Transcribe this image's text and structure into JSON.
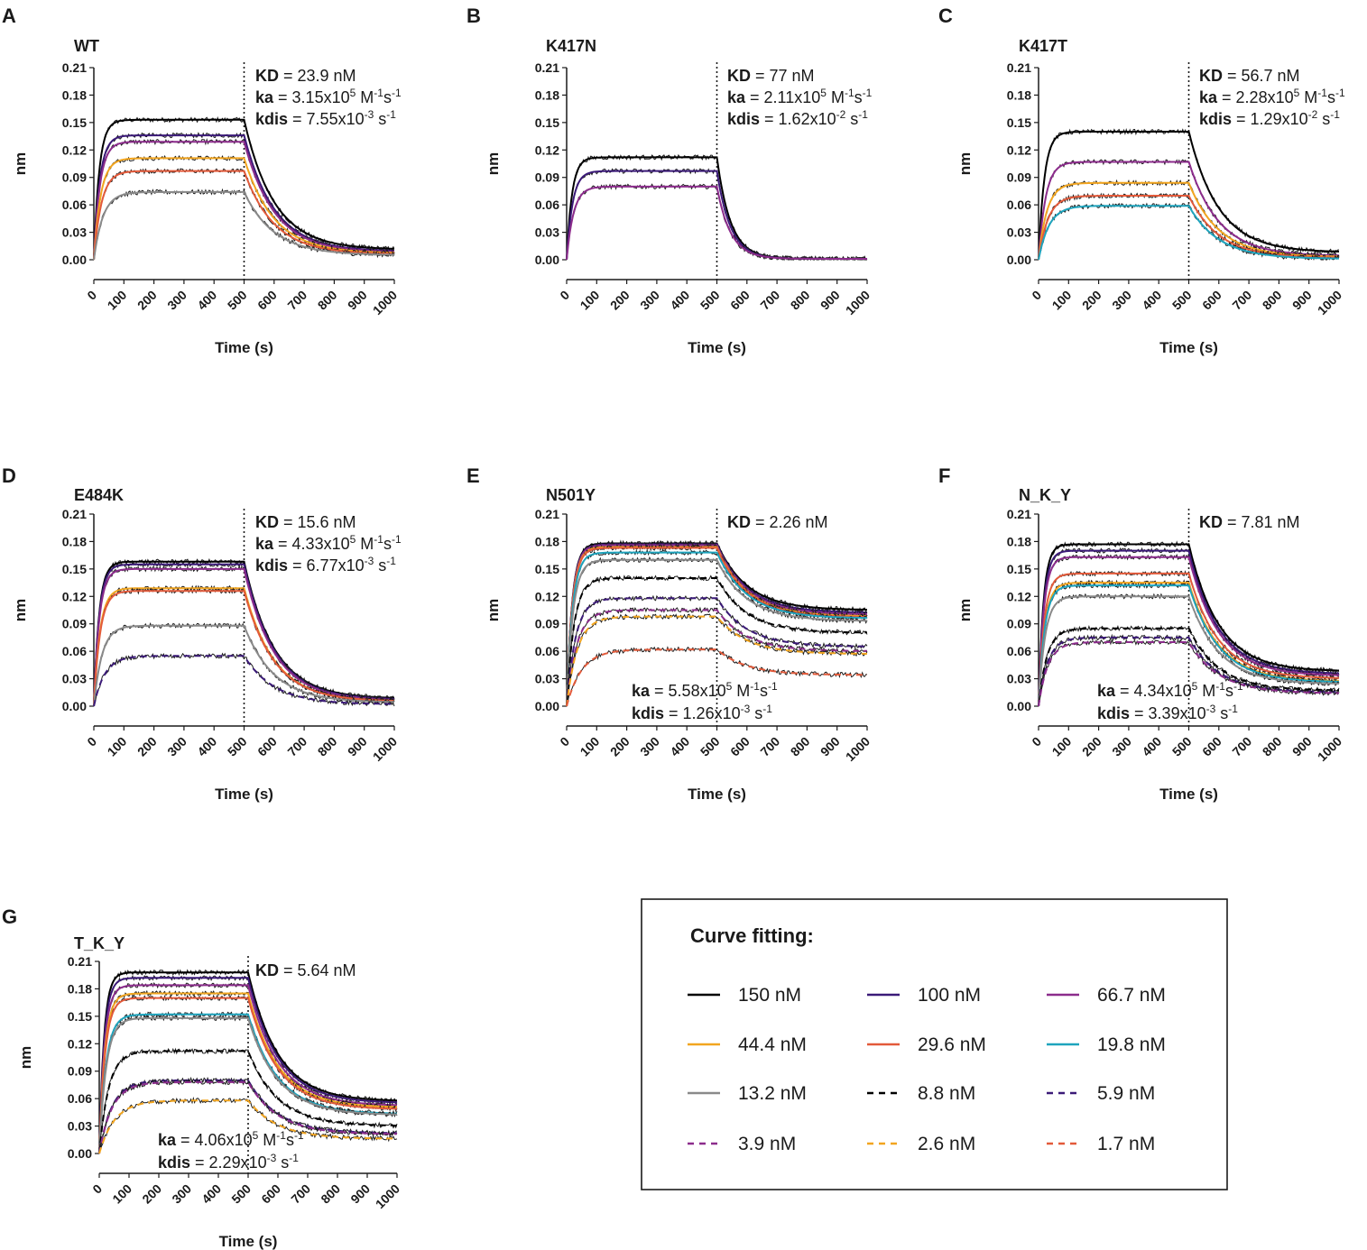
{
  "chart_data": {
    "type": "line",
    "x_axis": {
      "label": "Time (s)",
      "range": [
        0,
        1000
      ],
      "ticks": [
        "0",
        "100",
        "200",
        "300",
        "400",
        "500",
        "600",
        "700",
        "800",
        "900",
        "1000"
      ],
      "dissociation_start": 500
    },
    "y_axis": {
      "label": "nm",
      "range": [
        0,
        0.21
      ],
      "ticks": [
        "0.00",
        "0.03",
        "0.06",
        "0.09",
        "0.12",
        "0.15",
        "0.18",
        "0.21"
      ]
    },
    "legend": {
      "title": "Curve fitting:",
      "entries": [
        {
          "label": "150 nM",
          "color": "#000000",
          "dash": false
        },
        {
          "label": "100 nM",
          "color": "#3b1a78",
          "dash": false
        },
        {
          "label": "66.7 nM",
          "color": "#8c2c8c",
          "dash": false
        },
        {
          "label": "44.4 nM",
          "color": "#f2a51f",
          "dash": false
        },
        {
          "label": "29.6 nM",
          "color": "#e35a3a",
          "dash": false
        },
        {
          "label": "19.8 nM",
          "color": "#1ea4bd",
          "dash": false
        },
        {
          "label": "13.2 nM",
          "color": "#8a8a8a",
          "dash": false
        },
        {
          "label": "8.8 nM",
          "color": "#000000",
          "dash": true
        },
        {
          "label": "5.9 nM",
          "color": "#3b1a78",
          "dash": true
        },
        {
          "label": "3.9 nM",
          "color": "#8c2c8c",
          "dash": true
        },
        {
          "label": "2.6 nM",
          "color": "#f2a51f",
          "dash": true
        },
        {
          "label": "1.7 nM",
          "color": "#e35a3a",
          "dash": true
        }
      ]
    },
    "panels": [
      {
        "id": "A",
        "title": "WT",
        "KD": "23.9 nM",
        "ka_m": "3.15x10",
        "ka_exp": "5",
        "kdis_m": "7.55x10",
        "kdis_exp": "-3",
        "series": [
          {
            "conc": "150 nM",
            "plateau": 0.153,
            "end": 0.011
          },
          {
            "conc": "100 nM",
            "plateau": 0.136,
            "end": 0.009
          },
          {
            "conc": "66.7 nM",
            "plateau": 0.129,
            "end": 0.008
          },
          {
            "conc": "44.4 nM",
            "plateau": 0.111,
            "end": 0.007
          },
          {
            "conc": "29.6 nM",
            "plateau": 0.097,
            "end": 0.006
          },
          {
            "conc": "13.2 nM",
            "plateau": 0.074,
            "end": 0.005
          }
        ]
      },
      {
        "id": "B",
        "title": "K417N",
        "KD": "77 nM",
        "ka_m": "2.11x10",
        "ka_exp": "5",
        "kdis_m": "1.62x10",
        "kdis_exp": "-2",
        "series": [
          {
            "conc": "150 nM",
            "plateau": 0.112,
            "end": 0.001
          },
          {
            "conc": "100 nM",
            "plateau": 0.097,
            "end": 0.001
          },
          {
            "conc": "66.7 nM",
            "plateau": 0.08,
            "end": 0.001
          }
        ]
      },
      {
        "id": "C",
        "title": "K417T",
        "KD": "56.7 nM",
        "ka_m": "2.28x10",
        "ka_exp": "5",
        "kdis_m": "1.29x10",
        "kdis_exp": "-2",
        "series": [
          {
            "conc": "150 nM",
            "plateau": 0.14,
            "end": 0.008
          },
          {
            "conc": "66.7 nM",
            "plateau": 0.107,
            "end": 0.004
          },
          {
            "conc": "44.4 nM",
            "plateau": 0.084,
            "end": 0.003
          },
          {
            "conc": "29.6 nM",
            "plateau": 0.07,
            "end": 0.002
          },
          {
            "conc": "19.8 nM",
            "plateau": 0.059,
            "end": 0.001
          }
        ]
      },
      {
        "id": "D",
        "title": "E484K",
        "KD": "15.6 nM",
        "ka_m": "4.33x10",
        "ka_exp": "5",
        "kdis_m": "6.77x10",
        "kdis_exp": "-3",
        "series": [
          {
            "conc": "150 nM",
            "plateau": 0.158,
            "end": 0.008
          },
          {
            "conc": "100 nM",
            "plateau": 0.155,
            "end": 0.007
          },
          {
            "conc": "66.7 nM",
            "plateau": 0.15,
            "end": 0.006
          },
          {
            "conc": "44.4 nM",
            "plateau": 0.129,
            "end": 0.005
          },
          {
            "conc": "29.6 nM",
            "plateau": 0.126,
            "end": 0.005
          },
          {
            "conc": "13.2 nM",
            "plateau": 0.088,
            "end": 0.004
          },
          {
            "conc": "5.9 nM",
            "plateau": 0.055,
            "end": 0.002
          }
        ]
      },
      {
        "id": "E",
        "title": "N501Y",
        "KD": "2.26 nM",
        "ka_m": "5.58x10",
        "ka_exp": "5",
        "kdis_m": "1.26x10",
        "kdis_exp": "-3",
        "series": [
          {
            "conc": "150 nM",
            "plateau": 0.178,
            "end": 0.105
          },
          {
            "conc": "100 nM",
            "plateau": 0.177,
            "end": 0.102
          },
          {
            "conc": "66.7 nM",
            "plateau": 0.176,
            "end": 0.1
          },
          {
            "conc": "44.4 nM",
            "plateau": 0.174,
            "end": 0.098
          },
          {
            "conc": "29.6 nM",
            "plateau": 0.173,
            "end": 0.097
          },
          {
            "conc": "19.8 nM",
            "plateau": 0.168,
            "end": 0.096
          },
          {
            "conc": "13.2 nM",
            "plateau": 0.16,
            "end": 0.093
          },
          {
            "conc": "8.8 nM",
            "plateau": 0.14,
            "end": 0.08
          },
          {
            "conc": "5.9 nM",
            "plateau": 0.118,
            "end": 0.065
          },
          {
            "conc": "3.9 nM",
            "plateau": 0.105,
            "end": 0.06
          },
          {
            "conc": "2.6 nM",
            "plateau": 0.098,
            "end": 0.057
          },
          {
            "conc": "1.7 nM",
            "plateau": 0.062,
            "end": 0.034
          }
        ]
      },
      {
        "id": "F",
        "title": "N_K_Y",
        "KD": "7.81 nM",
        "ka_m": "4.34x10",
        "ka_exp": "5",
        "kdis_m": "3.39x10",
        "kdis_exp": "-3",
        "series": [
          {
            "conc": "150 nM",
            "plateau": 0.177,
            "end": 0.038
          },
          {
            "conc": "100 nM",
            "plateau": 0.17,
            "end": 0.035
          },
          {
            "conc": "66.7 nM",
            "plateau": 0.163,
            "end": 0.033
          },
          {
            "conc": "44.4 nM",
            "plateau": 0.135,
            "end": 0.027
          },
          {
            "conc": "29.6 nM",
            "plateau": 0.145,
            "end": 0.03
          },
          {
            "conc": "19.8 nM",
            "plateau": 0.132,
            "end": 0.026
          },
          {
            "conc": "13.2 nM",
            "plateau": 0.12,
            "end": 0.024
          },
          {
            "conc": "8.8 nM",
            "plateau": 0.085,
            "end": 0.017
          },
          {
            "conc": "5.9 nM",
            "plateau": 0.075,
            "end": 0.015
          },
          {
            "conc": "3.9 nM",
            "plateau": 0.07,
            "end": 0.014
          }
        ]
      },
      {
        "id": "G",
        "title": "T_K_Y",
        "KD": "5.64 nM",
        "ka_m": "4.06x10",
        "ka_exp": "5",
        "kdis_m": "2.29x10",
        "kdis_exp": "-3",
        "series": [
          {
            "conc": "150 nM",
            "plateau": 0.198,
            "end": 0.057
          },
          {
            "conc": "100 nM",
            "plateau": 0.192,
            "end": 0.055
          },
          {
            "conc": "66.7 nM",
            "plateau": 0.184,
            "end": 0.052
          },
          {
            "conc": "44.4 nM",
            "plateau": 0.175,
            "end": 0.05
          },
          {
            "conc": "29.6 nM",
            "plateau": 0.17,
            "end": 0.048
          },
          {
            "conc": "19.8 nM",
            "plateau": 0.152,
            "end": 0.043
          },
          {
            "conc": "13.2 nM",
            "plateau": 0.148,
            "end": 0.042
          },
          {
            "conc": "8.8 nM",
            "plateau": 0.112,
            "end": 0.03
          },
          {
            "conc": "5.9 nM",
            "plateau": 0.08,
            "end": 0.022
          },
          {
            "conc": "3.9 nM",
            "plateau": 0.078,
            "end": 0.021
          },
          {
            "conc": "2.6 nM",
            "plateau": 0.058,
            "end": 0.016
          }
        ]
      }
    ]
  }
}
